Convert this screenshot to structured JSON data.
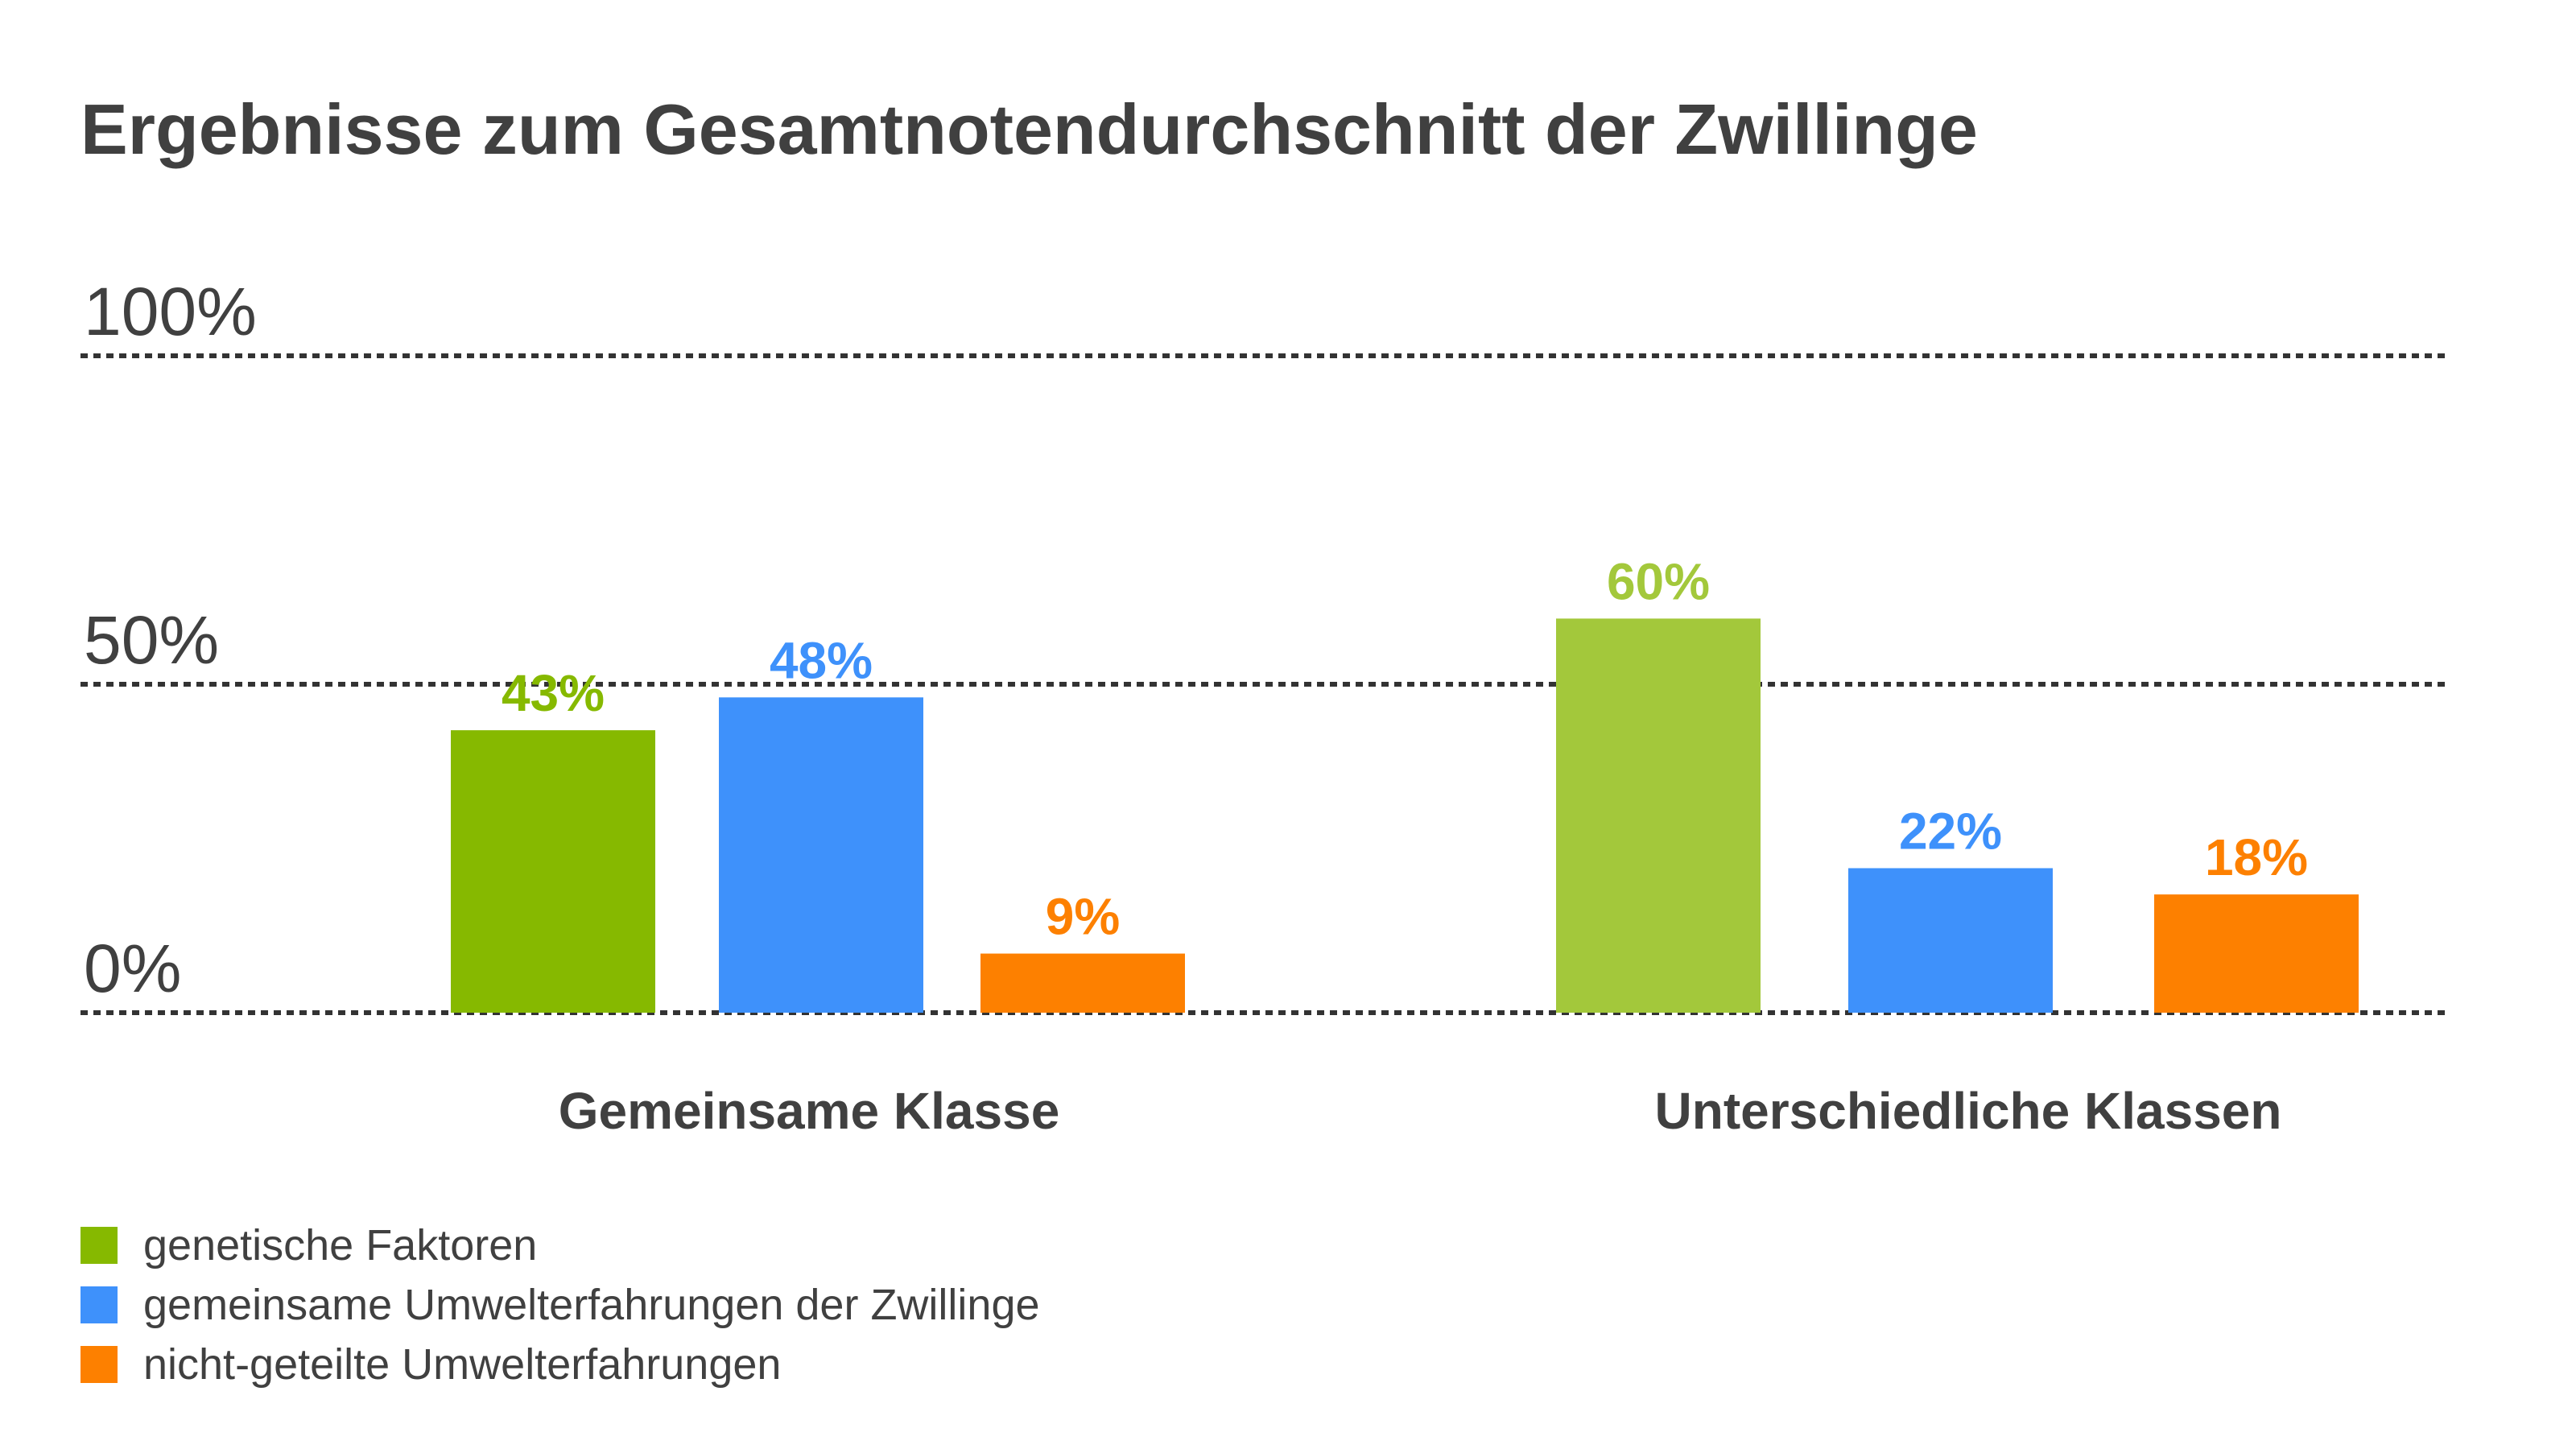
{
  "chart_data": {
    "type": "bar",
    "title": "Ergebnisse zum Gesamtnotendurchschnitt der Zwillinge",
    "categories": [
      "Gemeinsame Klasse",
      "Unterschiedliche Klassen"
    ],
    "series": [
      {
        "name": "genetische Faktoren",
        "values": [
          43,
          60
        ],
        "labels": [
          "43%",
          "60%"
        ]
      },
      {
        "name": "gemeinsame Umwelterfahrungen der Zwillinge",
        "values": [
          48,
          22
        ],
        "labels": [
          "48%",
          "22%"
        ]
      },
      {
        "name": "nicht-geteilte Umwelterfahrungen",
        "values": [
          9,
          18
        ],
        "labels": [
          "9%",
          "18%"
        ]
      }
    ],
    "colors": [
      [
        "#86b900",
        "#a3c83b"
      ],
      [
        "#3e91fb",
        "#3e91fb"
      ],
      [
        "#fd8000",
        "#fd8000"
      ]
    ],
    "yticks": [
      0,
      50,
      100
    ],
    "ytick_labels": [
      "0%",
      "50%",
      "100%"
    ],
    "ylim": [
      0,
      100
    ],
    "grid": "dashed",
    "legend": "bottom-left"
  }
}
